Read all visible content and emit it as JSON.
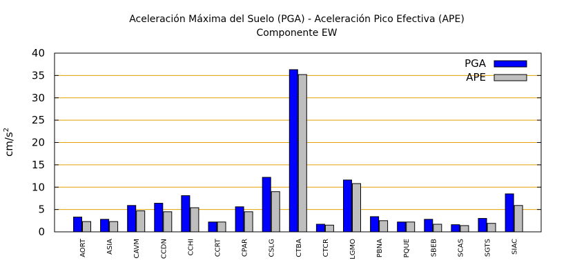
{
  "chart_data": {
    "type": "bar",
    "title": "Aceleración Máxima del Suelo (PGA) -  Aceleración Pico Efectiva (APE)",
    "subtitle": "Componente EW",
    "xlabel": "",
    "ylabel": "cm/s",
    "ylabel_superscript": "2",
    "ylim": [
      0,
      40
    ],
    "yticks": [
      0,
      5,
      10,
      15,
      20,
      25,
      30,
      35,
      40
    ],
    "grid": true,
    "legend_position": "top-right",
    "categories": [
      "AORT",
      "ASIA",
      "CAVM",
      "CCDN",
      "CCHI",
      "CCRT",
      "CPAR",
      "CSLG",
      "CTBA",
      "CTCR",
      "LGMO",
      "PBNA",
      "PQUE",
      "SBEB",
      "SCAS",
      "SGTS",
      "SIAC"
    ],
    "series": [
      {
        "name": "PGA",
        "color": "#0000ff",
        "values": [
          3.3,
          2.8,
          5.9,
          6.4,
          8.1,
          2.2,
          5.6,
          12.2,
          36.3,
          1.7,
          11.6,
          3.4,
          2.2,
          2.8,
          1.6,
          3.0,
          8.5
        ]
      },
      {
        "name": "APE",
        "color": "#bebebe",
        "values": [
          2.3,
          2.3,
          4.7,
          4.5,
          5.4,
          2.2,
          4.5,
          9.0,
          35.2,
          1.5,
          10.8,
          2.5,
          2.2,
          1.7,
          1.4,
          1.9,
          5.9
        ]
      }
    ],
    "colors": {
      "gridline": "#e0a000",
      "axis": "#000000"
    }
  }
}
